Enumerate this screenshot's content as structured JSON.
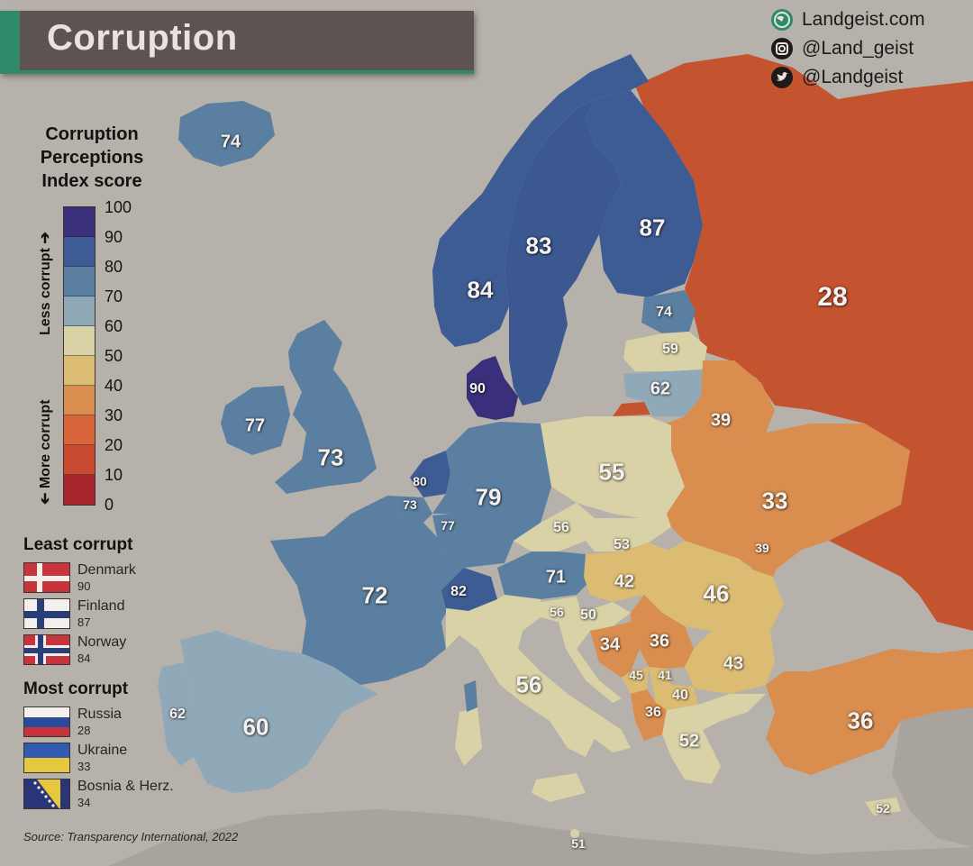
{
  "title": "Corruption",
  "social": {
    "website": "Landgeist.com",
    "instagram": "@Land_geist",
    "twitter": "@Landgeist"
  },
  "legend": {
    "title_lines": [
      "Corruption",
      "Perceptions",
      "Index score"
    ],
    "less_label": "Less corrupt",
    "more_label": "More corrupt",
    "ticks": [
      "100",
      "90",
      "80",
      "70",
      "60",
      "50",
      "40",
      "30",
      "20",
      "10",
      "0"
    ],
    "scale_colors": [
      "#3a2f7a",
      "#3d5c94",
      "#5b7fa0",
      "#8fa9b8",
      "#d9d2a6",
      "#dcbc73",
      "#d98d4e",
      "#d9653b",
      "#c94830",
      "#a8262d"
    ]
  },
  "least_corrupt": {
    "heading": "Least corrupt",
    "items": [
      {
        "name": "Denmark",
        "score": "90"
      },
      {
        "name": "Finland",
        "score": "87"
      },
      {
        "name": "Norway",
        "score": "84"
      }
    ]
  },
  "most_corrupt": {
    "heading": "Most corrupt",
    "items": [
      {
        "name": "Russia",
        "score": "28"
      },
      {
        "name": "Ukraine",
        "score": "33"
      },
      {
        "name": "Bosnia & Herz.",
        "score": "34"
      }
    ]
  },
  "source": "Source: Transparency International, 2022",
  "countries": [
    {
      "country": "Iceland",
      "score": "74",
      "color": "#5b7fa0"
    },
    {
      "country": "Norway",
      "score": "84",
      "color": "#3d5c94"
    },
    {
      "country": "Sweden",
      "score": "83",
      "color": "#3d5c94"
    },
    {
      "country": "Finland",
      "score": "87",
      "color": "#3d5c94"
    },
    {
      "country": "Russia",
      "score": "28",
      "color": "#c94f2d"
    },
    {
      "country": "Estonia",
      "score": "74",
      "color": "#5b7fa0"
    },
    {
      "country": "Latvia",
      "score": "59",
      "color": "#d9d2a6"
    },
    {
      "country": "Lithuania",
      "score": "62",
      "color": "#8fa9b8"
    },
    {
      "country": "Denmark",
      "score": "90",
      "color": "#3a2f7a"
    },
    {
      "country": "Ireland",
      "score": "77",
      "color": "#5b7fa0"
    },
    {
      "country": "United Kingdom",
      "score": "73",
      "color": "#5b7fa0"
    },
    {
      "country": "Belarus",
      "score": "39",
      "color": "#d98d4e"
    },
    {
      "country": "Netherlands",
      "score": "80",
      "color": "#3d5c94"
    },
    {
      "country": "Belgium",
      "score": "73",
      "color": "#5b7fa0"
    },
    {
      "country": "Luxembourg",
      "score": "77",
      "color": "#5b7fa0"
    },
    {
      "country": "Germany",
      "score": "79",
      "color": "#5b7fa0"
    },
    {
      "country": "Poland",
      "score": "55",
      "color": "#d9d2a6"
    },
    {
      "country": "Ukraine",
      "score": "33",
      "color": "#d98d4e"
    },
    {
      "country": "Czechia",
      "score": "56",
      "color": "#d9d2a6"
    },
    {
      "country": "Slovakia",
      "score": "53",
      "color": "#d9d2a6"
    },
    {
      "country": "Moldova",
      "score": "39",
      "color": "#d98d4e"
    },
    {
      "country": "France",
      "score": "72",
      "color": "#5b7fa0"
    },
    {
      "country": "Austria",
      "score": "71",
      "color": "#5b7fa0"
    },
    {
      "country": "Hungary",
      "score": "42",
      "color": "#dcbc73"
    },
    {
      "country": "Romania",
      "score": "46",
      "color": "#dcbc73"
    },
    {
      "country": "Switzerland",
      "score": "82",
      "color": "#3d5c94"
    },
    {
      "country": "Slovenia",
      "score": "56",
      "color": "#d9d2a6"
    },
    {
      "country": "Croatia",
      "score": "50",
      "color": "#d9d2a6"
    },
    {
      "country": "Bosnia & Herzegovina",
      "score": "34",
      "color": "#d98d4e"
    },
    {
      "country": "Serbia",
      "score": "36",
      "color": "#d98d4e"
    },
    {
      "country": "Bulgaria",
      "score": "43",
      "color": "#dcbc73"
    },
    {
      "country": "Montenegro",
      "score": "45",
      "color": "#dcbc73"
    },
    {
      "country": "Kosovo",
      "score": "41",
      "color": "#dcbc73"
    },
    {
      "country": "North Macedonia",
      "score": "40",
      "color": "#dcbc73"
    },
    {
      "country": "Albania",
      "score": "36",
      "color": "#d98d4e"
    },
    {
      "country": "Italy",
      "score": "56",
      "color": "#d9d2a6"
    },
    {
      "country": "Greece",
      "score": "52",
      "color": "#d9d2a6"
    },
    {
      "country": "Turkey",
      "score": "36",
      "color": "#d98d4e"
    },
    {
      "country": "Portugal",
      "score": "62",
      "color": "#8fa9b8"
    },
    {
      "country": "Spain",
      "score": "60",
      "color": "#8fa9b8"
    },
    {
      "country": "Cyprus",
      "score": "52",
      "color": "#d9d2a6"
    },
    {
      "country": "Malta",
      "score": "51",
      "color": "#d9d2a6"
    }
  ]
}
